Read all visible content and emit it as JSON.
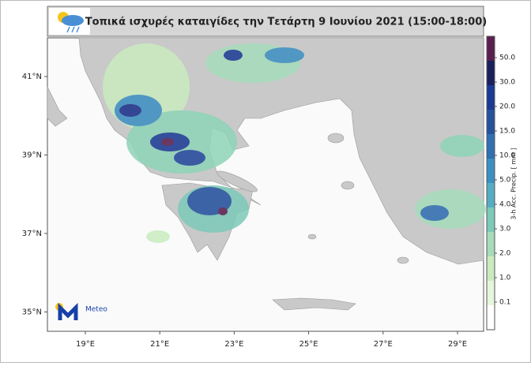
{
  "header": {
    "title": "Τοπικά ισχυρές καταιγίδες την Τετάρτη 9 Ιουνίου 2021 (15:00-18:00)"
  },
  "map": {
    "lon_labels": [
      "19°E",
      "21°E",
      "23°E",
      "25°E",
      "27°E",
      "29°E"
    ],
    "lat_labels": [
      "41°N",
      "39°N",
      "37°N",
      "35°N"
    ]
  },
  "colorbar": {
    "label": "3-h Acc. Precip. [ mm ]",
    "ticks": [
      "50.0",
      "30.0",
      "20.0",
      "15.0",
      "10.0",
      "5.0",
      "4.0",
      "3.0",
      "2.0",
      "1.0",
      "0.1"
    ]
  },
  "logo": {
    "text": "Meteo"
  }
}
